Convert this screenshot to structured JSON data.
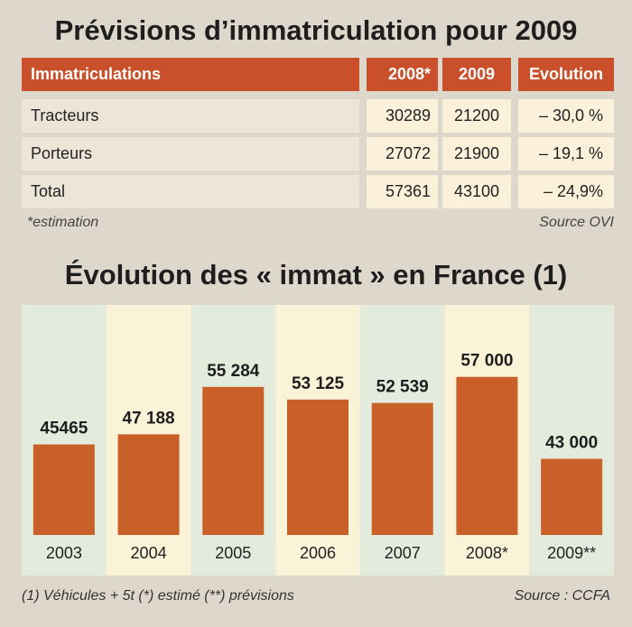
{
  "table": {
    "title": "Prévisions d’immatriculation pour 2009",
    "headers": [
      "Immatriculations",
      "2008*",
      "2009",
      "Evolution"
    ],
    "rows": [
      [
        "Tracteurs",
        "30289",
        "21200",
        "– 30,0 %"
      ],
      [
        "Porteurs",
        "27072",
        "21900",
        "– 19,1 %"
      ],
      [
        "Total",
        "57361",
        "43100",
        "– 24,9%"
      ]
    ],
    "note_left": "*estimation",
    "note_right": "Source OVI"
  },
  "chart_data": {
    "type": "bar",
    "title": "Évolution des « immat » en France (1)",
    "categories": [
      "2003",
      "2004",
      "2005",
      "2006",
      "2007",
      "2008*",
      "2009**"
    ],
    "values": [
      45465,
      47188,
      55284,
      53125,
      52539,
      57000,
      43000
    ],
    "value_labels": [
      "45465",
      "47 188",
      "55 284",
      "53 125",
      "52 539",
      "57 000",
      "43 000"
    ],
    "ylim": [
      30000,
      58500
    ],
    "grid": false,
    "bar_color": "#c9602a",
    "column_colors": [
      "#e2ebdc",
      "#fbf3d8"
    ]
  },
  "footer": {
    "left": "(1) Véhicules + 5t (*) estimé (**) prévisions",
    "right": "Source : CCFA"
  }
}
